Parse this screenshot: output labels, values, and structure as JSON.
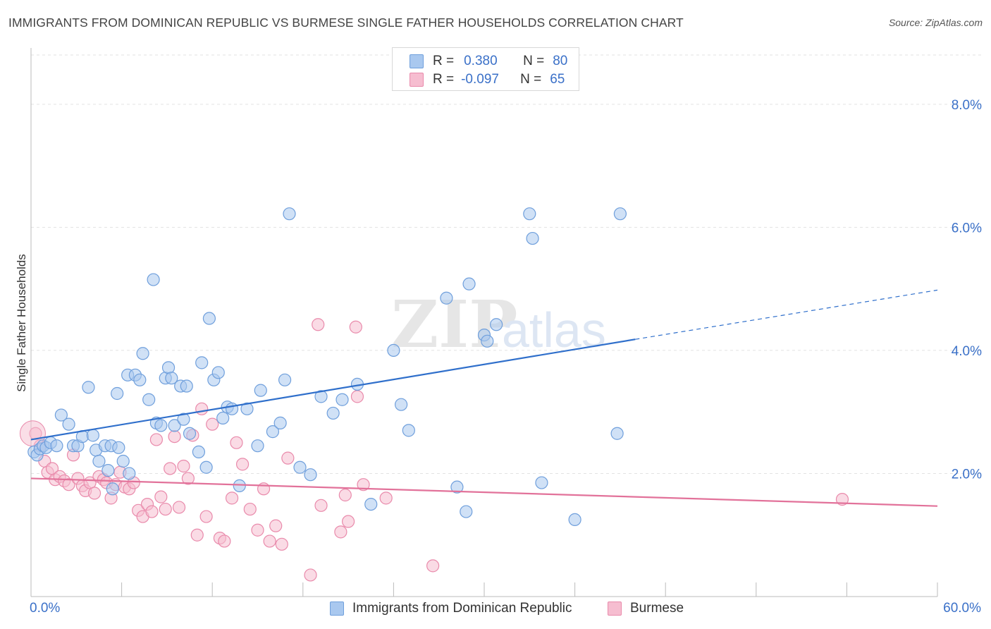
{
  "title": "IMMIGRANTS FROM DOMINICAN REPUBLIC VS BURMESE SINGLE FATHER HOUSEHOLDS CORRELATION CHART",
  "source": "Source: ZipAtlas.com",
  "watermark": {
    "zip": "ZIP",
    "atlas": "atlas"
  },
  "colors": {
    "blue": "#a9c8ef",
    "blue_stroke": "#6f9fdc",
    "blue_line": "#2f6fcb",
    "pink": "#f6bdd0",
    "pink_stroke": "#e98aab",
    "pink_line": "#e2729a",
    "tick_label": "#3a70c8"
  },
  "legend_top": {
    "rows": [
      {
        "r_label": "R =",
        "r_value": "0.380",
        "n_label": "N =",
        "n_value": "80"
      },
      {
        "r_label": "R =",
        "r_value": "-0.097",
        "n_label": "N =",
        "n_value": "65"
      }
    ]
  },
  "x_axis": {
    "min_label": "0.0%",
    "max_label": "60.0%"
  },
  "chart_data": {
    "type": "scatter",
    "title": "IMMIGRANTS FROM DOMINICAN REPUBLIC VS BURMESE SINGLE FATHER HOUSEHOLDS CORRELATION CHART",
    "xlabel": "",
    "ylabel": "Single Father Households",
    "xlim": [
      0,
      60
    ],
    "ylim": [
      0,
      8.8
    ],
    "y_ticks": [
      {
        "value": 2,
        "label": "2.0%"
      },
      {
        "value": 4,
        "label": "4.0%"
      },
      {
        "value": 6,
        "label": "6.0%"
      },
      {
        "value": 8,
        "label": "8.0%"
      }
    ],
    "grid": true,
    "legend": "bottom",
    "series": [
      {
        "name": "Immigrants from Dominican Republic",
        "r": 0.38,
        "n": 80,
        "trend": {
          "x0": 0,
          "y0": 2.55,
          "x1": 40,
          "y1": 4.18,
          "dash_to_x": 60,
          "dash_to_y": 4.98
        },
        "points": [
          [
            0.2,
            2.35
          ],
          [
            0.4,
            2.3
          ],
          [
            0.6,
            2.4
          ],
          [
            0.8,
            2.45
          ],
          [
            1.0,
            2.42
          ],
          [
            1.3,
            2.5
          ],
          [
            1.7,
            2.45
          ],
          [
            2.0,
            2.95
          ],
          [
            2.5,
            2.8
          ],
          [
            2.8,
            2.45
          ],
          [
            3.1,
            2.45
          ],
          [
            3.4,
            2.6
          ],
          [
            3.8,
            3.4
          ],
          [
            4.1,
            2.62
          ],
          [
            4.3,
            2.38
          ],
          [
            4.5,
            2.2
          ],
          [
            4.9,
            2.45
          ],
          [
            5.1,
            2.05
          ],
          [
            5.4,
            1.75
          ],
          [
            5.3,
            2.45
          ],
          [
            5.7,
            3.3
          ],
          [
            5.8,
            2.42
          ],
          [
            6.1,
            2.2
          ],
          [
            6.5,
            2.0
          ],
          [
            6.4,
            3.6
          ],
          [
            6.9,
            3.6
          ],
          [
            7.2,
            3.52
          ],
          [
            7.4,
            3.95
          ],
          [
            7.8,
            3.2
          ],
          [
            8.1,
            5.15
          ],
          [
            8.3,
            2.82
          ],
          [
            8.6,
            2.78
          ],
          [
            8.9,
            3.55
          ],
          [
            9.1,
            3.72
          ],
          [
            9.3,
            3.55
          ],
          [
            9.5,
            2.78
          ],
          [
            9.9,
            3.42
          ],
          [
            10.1,
            2.88
          ],
          [
            10.3,
            3.42
          ],
          [
            10.5,
            2.65
          ],
          [
            11.1,
            2.35
          ],
          [
            11.3,
            3.8
          ],
          [
            11.6,
            2.1
          ],
          [
            11.8,
            4.52
          ],
          [
            12.1,
            3.52
          ],
          [
            12.4,
            3.64
          ],
          [
            12.7,
            2.9
          ],
          [
            13.0,
            3.08
          ],
          [
            13.3,
            3.05
          ],
          [
            13.8,
            1.8
          ],
          [
            14.3,
            3.05
          ],
          [
            15.0,
            2.45
          ],
          [
            15.2,
            3.35
          ],
          [
            16.0,
            2.68
          ],
          [
            16.5,
            2.82
          ],
          [
            16.8,
            3.52
          ],
          [
            17.1,
            6.22
          ],
          [
            17.8,
            2.1
          ],
          [
            18.5,
            1.98
          ],
          [
            19.2,
            3.25
          ],
          [
            20.0,
            2.98
          ],
          [
            20.6,
            3.2
          ],
          [
            21.6,
            3.45
          ],
          [
            22.5,
            1.5
          ],
          [
            24.0,
            4.0
          ],
          [
            24.5,
            3.12
          ],
          [
            25.0,
            2.7
          ],
          [
            27.5,
            4.85
          ],
          [
            28.2,
            1.78
          ],
          [
            28.8,
            1.38
          ],
          [
            29.0,
            5.08
          ],
          [
            30.0,
            4.25
          ],
          [
            30.2,
            4.15
          ],
          [
            30.8,
            4.42
          ],
          [
            33.0,
            6.22
          ],
          [
            33.2,
            5.82
          ],
          [
            33.8,
            1.85
          ],
          [
            36.0,
            1.25
          ],
          [
            39.0,
            6.22
          ],
          [
            38.8,
            2.65
          ]
        ]
      },
      {
        "name": "Burmese",
        "r": -0.097,
        "n": 65,
        "trend": {
          "x0": 0,
          "y0": 1.92,
          "x1": 60,
          "y1": 1.47
        },
        "points": [
          [
            0.3,
            2.65
          ],
          [
            0.6,
            2.45
          ],
          [
            0.9,
            2.2
          ],
          [
            1.1,
            2.02
          ],
          [
            1.4,
            2.08
          ],
          [
            1.6,
            1.9
          ],
          [
            1.9,
            1.95
          ],
          [
            2.2,
            1.88
          ],
          [
            2.5,
            1.82
          ],
          [
            2.8,
            2.3
          ],
          [
            3.1,
            1.92
          ],
          [
            3.4,
            1.8
          ],
          [
            3.6,
            1.72
          ],
          [
            3.9,
            1.85
          ],
          [
            4.2,
            1.68
          ],
          [
            4.5,
            1.95
          ],
          [
            4.8,
            1.9
          ],
          [
            5.0,
            1.85
          ],
          [
            5.3,
            1.6
          ],
          [
            5.6,
            1.82
          ],
          [
            5.9,
            2.02
          ],
          [
            6.2,
            1.78
          ],
          [
            6.5,
            1.75
          ],
          [
            6.8,
            1.85
          ],
          [
            7.1,
            1.4
          ],
          [
            7.4,
            1.3
          ],
          [
            7.7,
            1.5
          ],
          [
            8.0,
            1.38
          ],
          [
            8.3,
            2.55
          ],
          [
            8.6,
            1.62
          ],
          [
            8.9,
            1.42
          ],
          [
            9.2,
            2.08
          ],
          [
            9.5,
            2.6
          ],
          [
            9.8,
            1.45
          ],
          [
            10.1,
            2.12
          ],
          [
            10.4,
            1.92
          ],
          [
            10.7,
            2.62
          ],
          [
            11.0,
            1.0
          ],
          [
            11.3,
            3.05
          ],
          [
            11.6,
            1.3
          ],
          [
            12.0,
            2.8
          ],
          [
            12.5,
            0.95
          ],
          [
            12.8,
            0.9
          ],
          [
            13.3,
            1.6
          ],
          [
            13.6,
            2.5
          ],
          [
            14.0,
            2.15
          ],
          [
            14.5,
            1.42
          ],
          [
            15.0,
            1.08
          ],
          [
            15.4,
            1.75
          ],
          [
            15.8,
            0.9
          ],
          [
            16.2,
            1.15
          ],
          [
            16.6,
            0.85
          ],
          [
            17.0,
            2.25
          ],
          [
            18.5,
            0.35
          ],
          [
            19.0,
            4.42
          ],
          [
            19.2,
            1.48
          ],
          [
            20.5,
            1.05
          ],
          [
            20.8,
            1.65
          ],
          [
            21.0,
            1.22
          ],
          [
            21.5,
            4.38
          ],
          [
            21.6,
            3.25
          ],
          [
            22.0,
            1.82
          ],
          [
            23.5,
            1.6
          ],
          [
            26.6,
            0.5
          ],
          [
            53.7,
            1.58
          ]
        ]
      }
    ]
  }
}
